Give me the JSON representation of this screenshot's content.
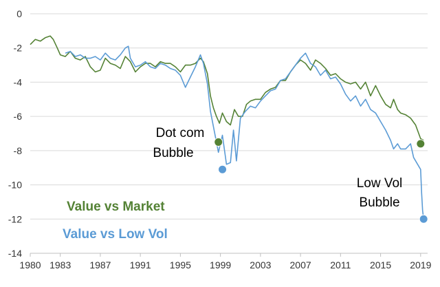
{
  "chart_data": {
    "type": "line",
    "title": "",
    "xlabel": "",
    "ylabel": "",
    "xlim": [
      1980,
      2019.7
    ],
    "ylim": [
      -14,
      0
    ],
    "grid": true,
    "x_ticks": [
      1980,
      1983,
      1987,
      1991,
      1995,
      1999,
      2003,
      2007,
      2011,
      2015,
      2019
    ],
    "x_tick_labels": [
      "1980",
      "1983",
      "1987",
      "1991",
      "1995",
      "1999",
      "2003",
      "2007",
      "2011",
      "2015",
      "2019"
    ],
    "y_ticks": [
      0,
      -2,
      -4,
      -6,
      -8,
      -10,
      -12,
      -14
    ],
    "y_tick_labels": [
      "0",
      "-2",
      "-4",
      "-6",
      "-8",
      "-10",
      "-12",
      "-14"
    ],
    "legend_position": "bottom-left",
    "series": [
      {
        "name": "Value vs Market",
        "color": "#548235",
        "points": [
          [
            1980,
            -1.8
          ],
          [
            1980.5,
            -1.5
          ],
          [
            1981,
            -1.6
          ],
          [
            1981.5,
            -1.4
          ],
          [
            1982,
            -1.3
          ],
          [
            1982.3,
            -1.5
          ],
          [
            1982.7,
            -2.0
          ],
          [
            1983,
            -2.4
          ],
          [
            1983.5,
            -2.5
          ],
          [
            1984,
            -2.2
          ],
          [
            1984.5,
            -2.6
          ],
          [
            1985,
            -2.7
          ],
          [
            1985.5,
            -2.5
          ],
          [
            1986,
            -3.1
          ],
          [
            1986.5,
            -3.4
          ],
          [
            1987,
            -3.3
          ],
          [
            1987.5,
            -2.6
          ],
          [
            1988,
            -2.9
          ],
          [
            1988.5,
            -3.0
          ],
          [
            1989,
            -3.2
          ],
          [
            1989.5,
            -2.5
          ],
          [
            1990,
            -2.8
          ],
          [
            1990.5,
            -3.4
          ],
          [
            1991,
            -3.1
          ],
          [
            1991.5,
            -2.9
          ],
          [
            1992,
            -2.9
          ],
          [
            1992.5,
            -3.1
          ],
          [
            1993,
            -2.8
          ],
          [
            1993.5,
            -2.9
          ],
          [
            1994,
            -2.9
          ],
          [
            1994.5,
            -3.1
          ],
          [
            1995,
            -3.4
          ],
          [
            1995.5,
            -3.0
          ],
          [
            1996,
            -3.0
          ],
          [
            1996.5,
            -2.9
          ],
          [
            1997,
            -2.6
          ],
          [
            1997.3,
            -2.8
          ],
          [
            1997.7,
            -3.5
          ],
          [
            1998,
            -4.8
          ],
          [
            1998.3,
            -5.5
          ],
          [
            1998.6,
            -6.0
          ],
          [
            1998.9,
            -6.4
          ],
          [
            1999.2,
            -5.8
          ],
          [
            1999.6,
            -6.3
          ],
          [
            2000,
            -6.5
          ],
          [
            2000.4,
            -5.6
          ],
          [
            2000.8,
            -6.0
          ],
          [
            2001.2,
            -6.0
          ],
          [
            2001.6,
            -5.3
          ],
          [
            2002,
            -5.1
          ],
          [
            2002.5,
            -5.0
          ],
          [
            2003,
            -5.0
          ],
          [
            2003.5,
            -4.6
          ],
          [
            2004,
            -4.4
          ],
          [
            2004.5,
            -4.3
          ],
          [
            2005,
            -3.9
          ],
          [
            2005.5,
            -3.9
          ],
          [
            2006,
            -3.4
          ],
          [
            2006.5,
            -3.0
          ],
          [
            2007,
            -2.7
          ],
          [
            2007.5,
            -2.9
          ],
          [
            2008,
            -3.3
          ],
          [
            2008.5,
            -2.7
          ],
          [
            2009,
            -2.9
          ],
          [
            2009.5,
            -3.2
          ],
          [
            2010,
            -3.6
          ],
          [
            2010.5,
            -3.5
          ],
          [
            2011,
            -3.8
          ],
          [
            2011.5,
            -4.0
          ],
          [
            2012,
            -4.1
          ],
          [
            2012.5,
            -4.0
          ],
          [
            2013,
            -4.4
          ],
          [
            2013.5,
            -4.0
          ],
          [
            2014,
            -4.8
          ],
          [
            2014.5,
            -4.2
          ],
          [
            2015,
            -4.8
          ],
          [
            2015.5,
            -5.3
          ],
          [
            2016,
            -5.5
          ],
          [
            2016.3,
            -5.0
          ],
          [
            2016.7,
            -5.6
          ],
          [
            2017,
            -5.8
          ],
          [
            2017.5,
            -5.9
          ],
          [
            2018,
            -6.1
          ],
          [
            2018.5,
            -6.5
          ],
          [
            2019,
            -7.3
          ],
          [
            2019.3,
            -7.4
          ]
        ]
      },
      {
        "name": "Value vs Low Vol",
        "color": "#5B9BD5",
        "points": [
          [
            1983.5,
            -2.3
          ],
          [
            1984,
            -2.2
          ],
          [
            1984.5,
            -2.5
          ],
          [
            1985,
            -2.4
          ],
          [
            1985.5,
            -2.6
          ],
          [
            1986,
            -2.6
          ],
          [
            1986.5,
            -2.5
          ],
          [
            1987,
            -2.7
          ],
          [
            1987.5,
            -2.3
          ],
          [
            1988,
            -2.6
          ],
          [
            1988.5,
            -2.7
          ],
          [
            1989,
            -2.4
          ],
          [
            1989.5,
            -2.0
          ],
          [
            1989.8,
            -1.9
          ],
          [
            1990,
            -2.6
          ],
          [
            1990.5,
            -3.1
          ],
          [
            1991,
            -3.0
          ],
          [
            1991.5,
            -2.8
          ],
          [
            1992,
            -3.1
          ],
          [
            1992.5,
            -3.2
          ],
          [
            1993,
            -2.9
          ],
          [
            1993.5,
            -3.0
          ],
          [
            1994,
            -3.2
          ],
          [
            1994.5,
            -3.3
          ],
          [
            1995,
            -3.6
          ],
          [
            1995.5,
            -4.3
          ],
          [
            1996,
            -3.7
          ],
          [
            1996.5,
            -3.1
          ],
          [
            1997,
            -2.4
          ],
          [
            1997.3,
            -2.9
          ],
          [
            1997.7,
            -4.1
          ],
          [
            1998,
            -5.7
          ],
          [
            1998.4,
            -6.9
          ],
          [
            1998.8,
            -8.1
          ],
          [
            1999.2,
            -7.1
          ],
          [
            1999.6,
            -8.8
          ],
          [
            2000,
            -8.7
          ],
          [
            2000.3,
            -6.8
          ],
          [
            2000.6,
            -8.6
          ],
          [
            2001,
            -6.1
          ],
          [
            2001.5,
            -5.7
          ],
          [
            2002,
            -5.4
          ],
          [
            2002.5,
            -5.5
          ],
          [
            2003,
            -5.1
          ],
          [
            2003.5,
            -4.8
          ],
          [
            2004,
            -4.5
          ],
          [
            2004.5,
            -4.4
          ],
          [
            2005,
            -3.9
          ],
          [
            2005.5,
            -3.8
          ],
          [
            2006,
            -3.4
          ],
          [
            2006.5,
            -3.0
          ],
          [
            2007,
            -2.6
          ],
          [
            2007.5,
            -2.3
          ],
          [
            2008,
            -2.9
          ],
          [
            2008.5,
            -3.1
          ],
          [
            2009,
            -3.6
          ],
          [
            2009.5,
            -3.3
          ],
          [
            2010,
            -3.8
          ],
          [
            2010.5,
            -3.7
          ],
          [
            2011,
            -4.1
          ],
          [
            2011.5,
            -4.7
          ],
          [
            2012,
            -5.1
          ],
          [
            2012.5,
            -4.8
          ],
          [
            2013,
            -5.4
          ],
          [
            2013.5,
            -5.0
          ],
          [
            2014,
            -5.6
          ],
          [
            2014.5,
            -5.8
          ],
          [
            2015,
            -6.3
          ],
          [
            2015.5,
            -6.8
          ],
          [
            2016,
            -7.4
          ],
          [
            2016.3,
            -7.9
          ],
          [
            2016.7,
            -7.6
          ],
          [
            2017,
            -7.9
          ],
          [
            2017.5,
            -7.9
          ],
          [
            2018,
            -7.6
          ],
          [
            2018.3,
            -8.4
          ],
          [
            2018.7,
            -8.8
          ],
          [
            2019,
            -9.1
          ],
          [
            2019.1,
            -10.5
          ],
          [
            2019.2,
            -11.5
          ],
          [
            2019.3,
            -12.0
          ]
        ]
      }
    ],
    "markers": [
      {
        "name": "Dot com Bubble market point",
        "x": 1998.8,
        "y": -7.5,
        "color": "#548235"
      },
      {
        "name": "Dot com Bubble low vol point",
        "x": 1999.2,
        "y": -9.1,
        "color": "#5B9BD5"
      },
      {
        "name": "Low Vol Bubble market point",
        "x": 2019.0,
        "y": -7.6,
        "color": "#548235"
      },
      {
        "name": "Low Vol Bubble low vol point",
        "x": 2019.3,
        "y": -12.0,
        "color": "#5B9BD5"
      }
    ],
    "annotations": [
      {
        "name": "dot-com",
        "lines": [
          "Dot com",
          "Bubble"
        ]
      },
      {
        "name": "low-vol",
        "lines": [
          "Low Vol",
          "Bubble"
        ]
      }
    ],
    "legend": {
      "market_label": "Value vs Market",
      "lowvol_label": "Value vs Low Vol",
      "market_color": "#548235",
      "lowvol_color": "#5B9BD5"
    }
  }
}
